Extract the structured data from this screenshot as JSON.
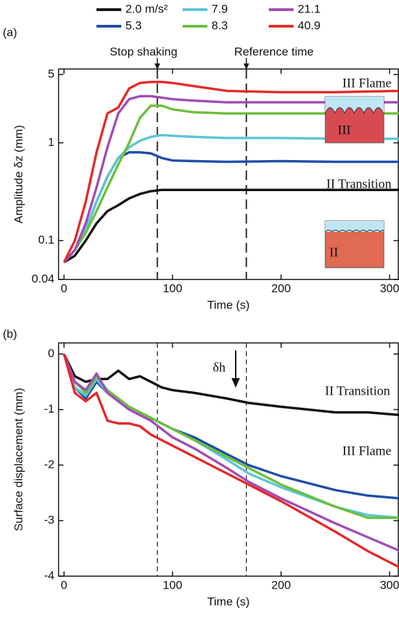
{
  "chart_data": [
    {
      "type": "line",
      "panel": "(a)",
      "xlabel": "Time (s)",
      "ylabel": "Amplitude δz (mm)",
      "yscale": "log",
      "x": [
        0,
        10,
        20,
        30,
        40,
        50,
        60,
        70,
        80,
        90,
        100,
        120,
        150,
        200,
        250,
        310
      ],
      "xlim": [
        -5,
        308
      ],
      "xticks": [
        0,
        100,
        200,
        300
      ],
      "ylim": [
        0.04,
        5
      ],
      "yticks": [
        0.04,
        0.1,
        1,
        5
      ],
      "legend": "top",
      "markers": [
        {
          "label": "Stop shaking",
          "x": 86
        },
        {
          "label": "Reference time",
          "x": 168
        }
      ],
      "regimes": [
        "III Flame",
        "II Transition"
      ],
      "inset_labels": [
        "III",
        "II"
      ],
      "series": [
        {
          "name": "2.0 m/s²",
          "color": "#111111",
          "values": [
            0.06,
            0.07,
            0.1,
            0.15,
            0.2,
            0.23,
            0.27,
            0.3,
            0.32,
            0.33,
            0.33,
            0.33,
            0.33,
            0.33,
            0.33,
            0.33
          ]
        },
        {
          "name": "5.3",
          "color": "#1f4ea8",
          "values": [
            0.06,
            0.08,
            0.13,
            0.25,
            0.45,
            0.7,
            0.8,
            0.8,
            0.78,
            0.7,
            0.66,
            0.65,
            0.64,
            0.65,
            0.64,
            0.64
          ]
        },
        {
          "name": "7.9",
          "color": "#5bc6d6",
          "values": [
            0.06,
            0.08,
            0.13,
            0.25,
            0.45,
            0.7,
            0.9,
            1.05,
            1.15,
            1.2,
            1.18,
            1.15,
            1.12,
            1.12,
            1.1,
            1.1
          ]
        },
        {
          "name": "8.3",
          "color": "#6cbf3c",
          "values": [
            0.06,
            0.08,
            0.12,
            0.2,
            0.35,
            0.6,
            1.0,
            1.8,
            2.4,
            2.4,
            2.2,
            2.05,
            2.0,
            2.0,
            2.0,
            2.0
          ]
        },
        {
          "name": "21.1",
          "color": "#a04db5",
          "values": [
            0.06,
            0.08,
            0.15,
            0.35,
            0.9,
            2.0,
            2.8,
            3.0,
            3.0,
            2.9,
            2.8,
            2.7,
            2.6,
            2.6,
            2.6,
            2.6
          ]
        },
        {
          "name": "40.9",
          "color": "#e32a2a",
          "values": [
            0.06,
            0.1,
            0.25,
            0.8,
            2.0,
            2.3,
            3.6,
            4.1,
            4.2,
            4.2,
            4.1,
            3.8,
            3.4,
            3.3,
            3.3,
            3.4
          ]
        }
      ]
    },
    {
      "type": "line",
      "panel": "(b)",
      "xlabel": "Time (s)",
      "ylabel": "Surface displacement (mm)",
      "x": [
        0,
        10,
        20,
        30,
        40,
        50,
        60,
        70,
        80,
        90,
        100,
        120,
        150,
        170,
        200,
        250,
        280,
        310
      ],
      "xlim": [
        -5,
        308
      ],
      "xticks": [
        0,
        100,
        200,
        300
      ],
      "ylim": [
        -4,
        0.2
      ],
      "yticks": [
        0,
        -1,
        -2,
        -3,
        -4
      ],
      "vlines": [
        86,
        168
      ],
      "annotations": [
        "δh",
        "II Transition",
        "III Flame"
      ],
      "series": [
        {
          "color": "#111111",
          "values": [
            0,
            -0.4,
            -0.5,
            -0.45,
            -0.45,
            -0.3,
            -0.45,
            -0.4,
            -0.5,
            -0.6,
            -0.65,
            -0.7,
            -0.8,
            -0.88,
            -0.95,
            -1.05,
            -1.05,
            -1.1
          ]
        },
        {
          "color": "#1f4ea8",
          "values": [
            0,
            -0.6,
            -0.8,
            -0.5,
            -0.7,
            -0.85,
            -0.95,
            -1.05,
            -1.15,
            -1.25,
            -1.35,
            -1.5,
            -1.8,
            -2.0,
            -2.2,
            -2.45,
            -2.55,
            -2.6
          ]
        },
        {
          "color": "#5bc6d6",
          "values": [
            0,
            -0.6,
            -0.75,
            -0.45,
            -0.7,
            -0.85,
            -0.95,
            -1.05,
            -1.15,
            -1.25,
            -1.35,
            -1.55,
            -1.9,
            -2.15,
            -2.4,
            -2.75,
            -2.9,
            -2.95
          ]
        },
        {
          "color": "#6cbf3c",
          "values": [
            0,
            -0.5,
            -0.7,
            -0.4,
            -0.65,
            -0.8,
            -0.95,
            -1.05,
            -1.15,
            -1.25,
            -1.35,
            -1.55,
            -1.85,
            -2.05,
            -2.35,
            -2.75,
            -2.95,
            -2.95
          ]
        },
        {
          "color": "#a04db5",
          "values": [
            0,
            -0.5,
            -0.65,
            -0.35,
            -0.7,
            -0.85,
            -1.0,
            -1.1,
            -1.2,
            -1.35,
            -1.5,
            -1.7,
            -2.05,
            -2.3,
            -2.6,
            -3.05,
            -3.3,
            -3.55
          ]
        },
        {
          "color": "#e32a2a",
          "values": [
            0,
            -0.7,
            -0.85,
            -0.7,
            -1.2,
            -1.25,
            -1.25,
            -1.3,
            -1.45,
            -1.55,
            -1.65,
            -1.85,
            -2.15,
            -2.35,
            -2.65,
            -3.2,
            -3.55,
            -3.85
          ]
        }
      ]
    }
  ]
}
